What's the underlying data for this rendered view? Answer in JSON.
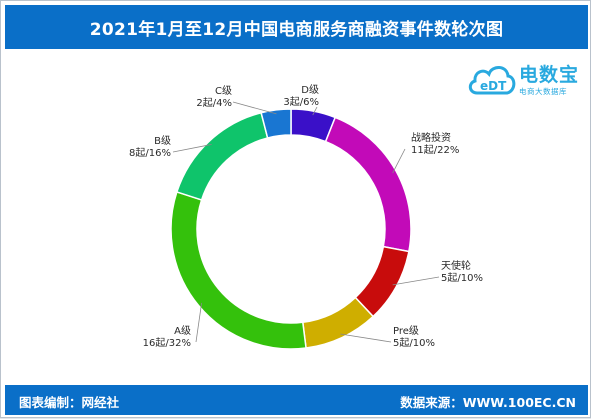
{
  "title": "2021年1月至12月中国电商服务商融资事件数轮次图",
  "footer": {
    "left": "图表编制：网经社",
    "right": "数据来源：WWW.100EC.CN"
  },
  "logo": {
    "main": "电数宝",
    "sub": "电商大数据库",
    "badge": "eDT"
  },
  "chart_data": {
    "type": "pie",
    "donut": true,
    "title": "2021年1月至12月中国电商服务商融资事件数轮次图",
    "start_angle_deg": 0,
    "direction": "clockwise",
    "unit": "起",
    "slices": [
      {
        "name": "D级",
        "value": 3,
        "percent": "6%",
        "line1": "D级",
        "line2": "3起/6%",
        "color": "#3a10c8"
      },
      {
        "name": "战略投资",
        "value": 11,
        "percent": "22%",
        "line1": "战略投资",
        "line2": "11起/22%",
        "color": "#c20ab8"
      },
      {
        "name": "天使轮",
        "value": 5,
        "percent": "10%",
        "line1": "天使轮",
        "line2": "5起/10%",
        "color": "#c80c0c"
      },
      {
        "name": "Pre级",
        "value": 5,
        "percent": "10%",
        "line1": "Pre级",
        "line2": "5起/10%",
        "color": "#cfae00"
      },
      {
        "name": "A级",
        "value": 16,
        "percent": "32%",
        "line1": "A级",
        "line2": "16起/32%",
        "color": "#34c10c"
      },
      {
        "name": "B级",
        "value": 8,
        "percent": "16%",
        "line1": "B级",
        "line2": "8起/16%",
        "color": "#0fc46b"
      },
      {
        "name": "C级",
        "value": 2,
        "percent": "4%",
        "line1": "C级",
        "line2": "2起/4%",
        "color": "#1976d2"
      }
    ]
  }
}
